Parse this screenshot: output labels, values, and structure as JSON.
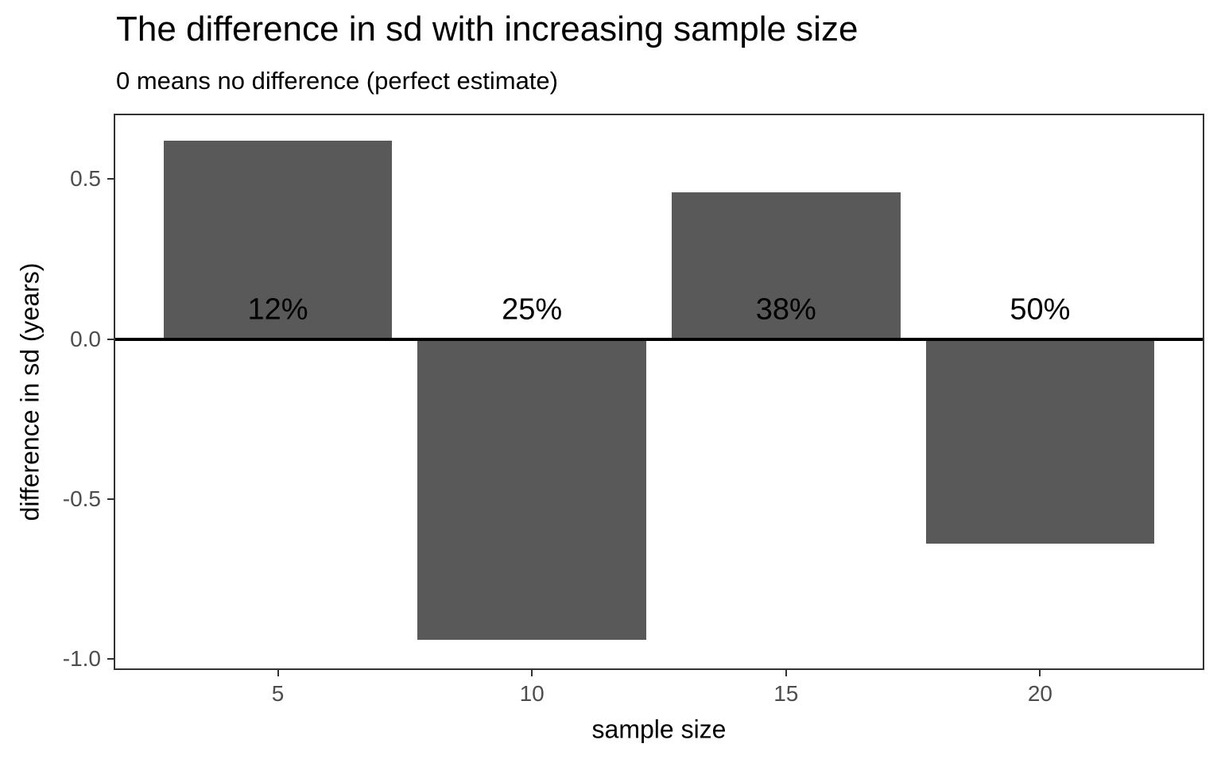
{
  "chart_data": {
    "type": "bar",
    "title": "The difference in sd with increasing sample size",
    "subtitle": "0 means no difference (perfect estimate)",
    "xlabel": "sample size",
    "ylabel": "difference in sd (years)",
    "categories": [
      5,
      10,
      15,
      20
    ],
    "values": [
      0.62,
      -0.94,
      0.46,
      -0.64
    ],
    "bar_labels": [
      "12%",
      "25%",
      "38%",
      "50%"
    ],
    "bar_label_y": 0.09,
    "bar_width_units": 4.5,
    "xlim": [
      1.8,
      23.2
    ],
    "ylim": [
      -1.03,
      0.7
    ],
    "x_ticks": [
      {
        "value": 5,
        "label": "5"
      },
      {
        "value": 10,
        "label": "10"
      },
      {
        "value": 15,
        "label": "15"
      },
      {
        "value": 20,
        "label": "20"
      }
    ],
    "y_ticks": [
      {
        "value": 0.5,
        "label": "0.5"
      },
      {
        "value": 0.0,
        "label": "0.0"
      },
      {
        "value": -0.5,
        "label": "-0.5"
      },
      {
        "value": -1.0,
        "label": "-1.0"
      }
    ],
    "zero_line_y": 0,
    "grid": false,
    "legend_position": "none",
    "colors": {
      "bar_fill": "#595959",
      "bar_label": "#000000",
      "zero_line": "#000000",
      "panel_border": "#333333",
      "tick_label": "#4d4d4d",
      "title": "#000000",
      "axis_title": "#000000",
      "background": "#ffffff"
    }
  }
}
